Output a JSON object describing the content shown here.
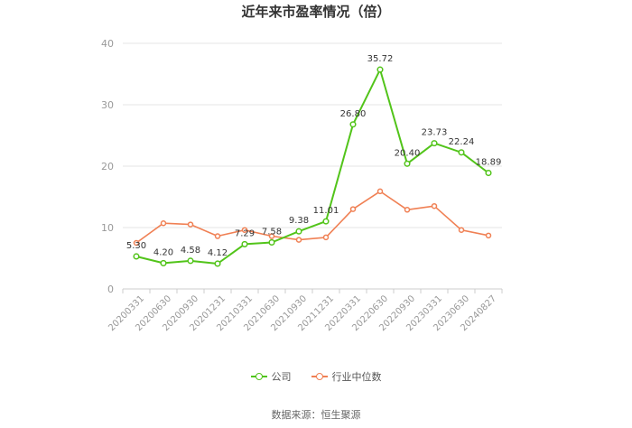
{
  "chart_data": {
    "type": "line",
    "title": "近年来市盈率情况（倍）",
    "categories": [
      "20200331",
      "20200630",
      "20200930",
      "20201231",
      "20210331",
      "20210630",
      "20210930",
      "20211231",
      "20220331",
      "20220630",
      "20220930",
      "20230331",
      "20230630",
      "20240827"
    ],
    "ylim": [
      0,
      40
    ],
    "yticks": [
      0,
      10,
      20,
      30,
      40
    ],
    "grid": true,
    "legend_position": "bottom",
    "series": [
      {
        "name": "公司",
        "color": "#52c41a",
        "values": [
          5.3,
          4.2,
          4.58,
          4.12,
          7.29,
          7.58,
          9.38,
          11.01,
          26.8,
          35.72,
          20.4,
          23.73,
          22.24,
          18.89
        ],
        "labels": [
          "5.30",
          "4.20",
          "4.58",
          "4.12",
          "7.29",
          "7.58",
          "9.38",
          "11.01",
          "26.80",
          "35.72",
          "20.40",
          "23.73",
          "22.24",
          "18.89"
        ]
      },
      {
        "name": "行业中位数",
        "color": "#f08054",
        "values": [
          7.5,
          10.7,
          10.5,
          8.6,
          9.6,
          8.6,
          8.0,
          8.4,
          13.0,
          15.9,
          12.9,
          13.5,
          9.6,
          8.7
        ]
      }
    ]
  },
  "source_text": "数据来源：恒生聚源"
}
